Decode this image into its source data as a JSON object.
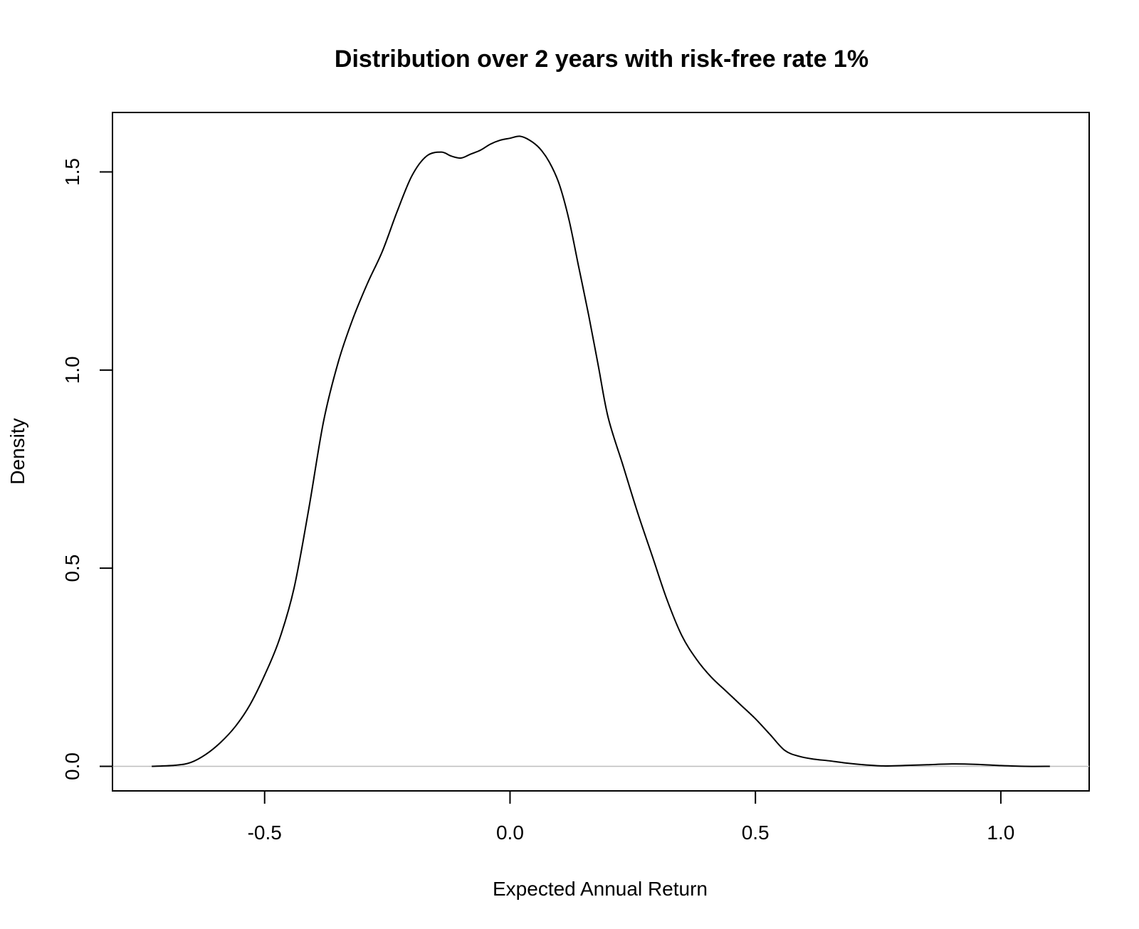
{
  "chart_data": {
    "type": "line",
    "title": "Distribution over 2 years with risk-free rate 1%",
    "xlabel": "Expected Annual Return",
    "ylabel": "Density",
    "xlim": [
      -0.81,
      1.18
    ],
    "ylim": [
      -0.062,
      1.65
    ],
    "x_ticks": [
      -0.5,
      0.0,
      0.5,
      1.0
    ],
    "x_tick_labels": [
      "-0.5",
      "0.0",
      "0.5",
      "1.0"
    ],
    "y_ticks": [
      0.0,
      0.5,
      1.0,
      1.5
    ],
    "y_tick_labels": [
      "0.0",
      "0.5",
      "1.0",
      "1.5"
    ],
    "grid": false,
    "baseline": 0,
    "colors": {
      "line": "#000000",
      "baseline": "#bebebe",
      "frame": "#000000"
    },
    "series": [
      {
        "x": [
          -0.73,
          -0.68,
          -0.65,
          -0.62,
          -0.59,
          -0.56,
          -0.53,
          -0.5,
          -0.47,
          -0.44,
          -0.41,
          -0.38,
          -0.35,
          -0.32,
          -0.29,
          -0.26,
          -0.23,
          -0.2,
          -0.17,
          -0.14,
          -0.12,
          -0.1,
          -0.08,
          -0.06,
          -0.04,
          -0.02,
          0.0,
          0.02,
          0.04,
          0.06,
          0.08,
          0.1,
          0.12,
          0.14,
          0.16,
          0.18,
          0.2,
          0.23,
          0.26,
          0.29,
          0.32,
          0.35,
          0.38,
          0.41,
          0.44,
          0.47,
          0.5,
          0.53,
          0.56,
          0.59,
          0.62,
          0.65,
          0.68,
          0.72,
          0.76,
          0.8,
          0.85,
          0.9,
          0.95,
          1.0,
          1.05,
          1.1
        ],
        "y": [
          0.0,
          0.003,
          0.01,
          0.03,
          0.06,
          0.1,
          0.155,
          0.23,
          0.32,
          0.45,
          0.65,
          0.87,
          1.02,
          1.13,
          1.22,
          1.3,
          1.4,
          1.49,
          1.54,
          1.55,
          1.54,
          1.535,
          1.545,
          1.555,
          1.57,
          1.58,
          1.585,
          1.59,
          1.58,
          1.56,
          1.525,
          1.47,
          1.38,
          1.26,
          1.14,
          1.01,
          0.88,
          0.76,
          0.64,
          0.53,
          0.42,
          0.33,
          0.27,
          0.225,
          0.19,
          0.155,
          0.12,
          0.08,
          0.04,
          0.025,
          0.018,
          0.014,
          0.009,
          0.004,
          0.001,
          0.002,
          0.004,
          0.006,
          0.005,
          0.002,
          0.0,
          0.0
        ]
      }
    ]
  }
}
